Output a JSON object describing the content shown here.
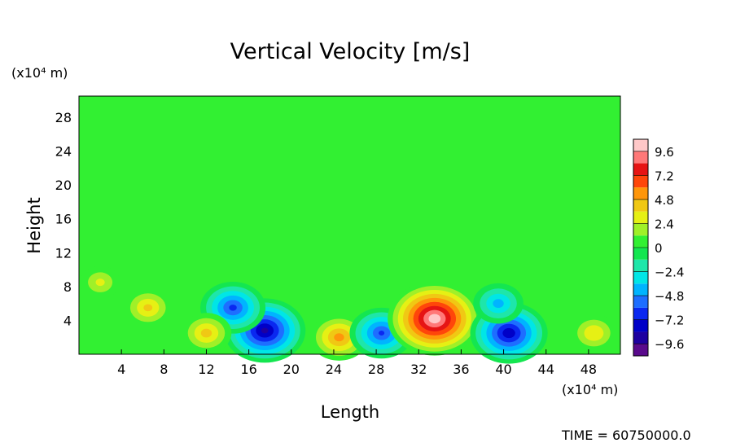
{
  "chart_data": {
    "type": "heatmap",
    "title": "Vertical Velocity [m/s]",
    "xlabel": "Length",
    "ylabel": "Height",
    "x_unit": "(x10⁴ m)",
    "y_unit": "(x10⁴ m)",
    "xlim": [
      0,
      51
    ],
    "ylim": [
      0,
      30.5
    ],
    "x_ticks": [
      4,
      8,
      12,
      16,
      20,
      24,
      28,
      32,
      36,
      40,
      44,
      48
    ],
    "y_ticks": [
      4,
      8,
      12,
      16,
      20,
      24,
      28
    ],
    "colorbar": {
      "ticks": [
        9.6,
        7.2,
        4.8,
        2.4,
        0,
        -2.4,
        -4.8,
        -7.2,
        -9.6
      ],
      "tick_labels": [
        "9.6",
        "7.2",
        "4.8",
        "2.4",
        "0",
        "−2.4",
        "−4.8",
        "−7.2",
        "−9.6"
      ],
      "range": [
        -10.8,
        10.8
      ],
      "levels": [
        {
          "lo": -10.8,
          "hi": -9.6,
          "color": "#5a0a8c"
        },
        {
          "lo": -9.6,
          "hi": -8.4,
          "color": "#1e00a0"
        },
        {
          "lo": -8.4,
          "hi": -7.2,
          "color": "#0000c8"
        },
        {
          "lo": -7.2,
          "hi": -6.0,
          "color": "#0a28f0"
        },
        {
          "lo": -6.0,
          "hi": -4.8,
          "color": "#1e6eff"
        },
        {
          "lo": -4.8,
          "hi": -3.6,
          "color": "#00b4ff"
        },
        {
          "lo": -3.6,
          "hi": -2.4,
          "color": "#00e6e6"
        },
        {
          "lo": -2.4,
          "hi": -1.2,
          "color": "#1ee6aa"
        },
        {
          "lo": -1.2,
          "hi": 0.0,
          "color": "#14e650"
        },
        {
          "lo": 0.0,
          "hi": 1.2,
          "color": "#32f032"
        },
        {
          "lo": 1.2,
          "hi": 2.4,
          "color": "#a0f028"
        },
        {
          "lo": 2.4,
          "hi": 3.6,
          "color": "#e6f014"
        },
        {
          "lo": 3.6,
          "hi": 4.8,
          "color": "#f0c814"
        },
        {
          "lo": 4.8,
          "hi": 6.0,
          "color": "#ff960a"
        },
        {
          "lo": 6.0,
          "hi": 7.2,
          "color": "#ff460a"
        },
        {
          "lo": 7.2,
          "hi": 8.4,
          "color": "#e61414"
        },
        {
          "lo": 8.4,
          "hi": 9.6,
          "color": "#ff7878"
        },
        {
          "lo": 9.6,
          "hi": 10.8,
          "color": "#ffc8c8"
        }
      ]
    },
    "field_features": [
      {
        "label": "updraft",
        "x": 6.5,
        "y": 5.5,
        "peak": 3.8
      },
      {
        "label": "downdraft",
        "x": 17.5,
        "y": 2.8,
        "peak": -8.6
      },
      {
        "label": "downdraft",
        "x": 14.5,
        "y": 5.5,
        "peak": -6.2
      },
      {
        "label": "updraft",
        "x": 24.5,
        "y": 2.0,
        "peak": 5.2
      },
      {
        "label": "downdraft",
        "x": 28.5,
        "y": 2.5,
        "peak": -6.0
      },
      {
        "label": "updraft",
        "x": 33.5,
        "y": 4.2,
        "peak": 10.4
      },
      {
        "label": "downdraft",
        "x": 40.5,
        "y": 2.5,
        "peak": -8.0
      },
      {
        "label": "downdraft",
        "x": 39.5,
        "y": 6.0,
        "peak": -4.0
      },
      {
        "label": "updraft",
        "x": 12.0,
        "y": 2.5,
        "peak": 4.0
      },
      {
        "label": "updraft",
        "x": 48.5,
        "y": 2.5,
        "peak": 3.5
      },
      {
        "label": "updraft",
        "x": 2.0,
        "y": 8.5,
        "peak": 2.5
      }
    ],
    "background_value": 0.3
  },
  "time_label": "TIME = 60750000.0"
}
